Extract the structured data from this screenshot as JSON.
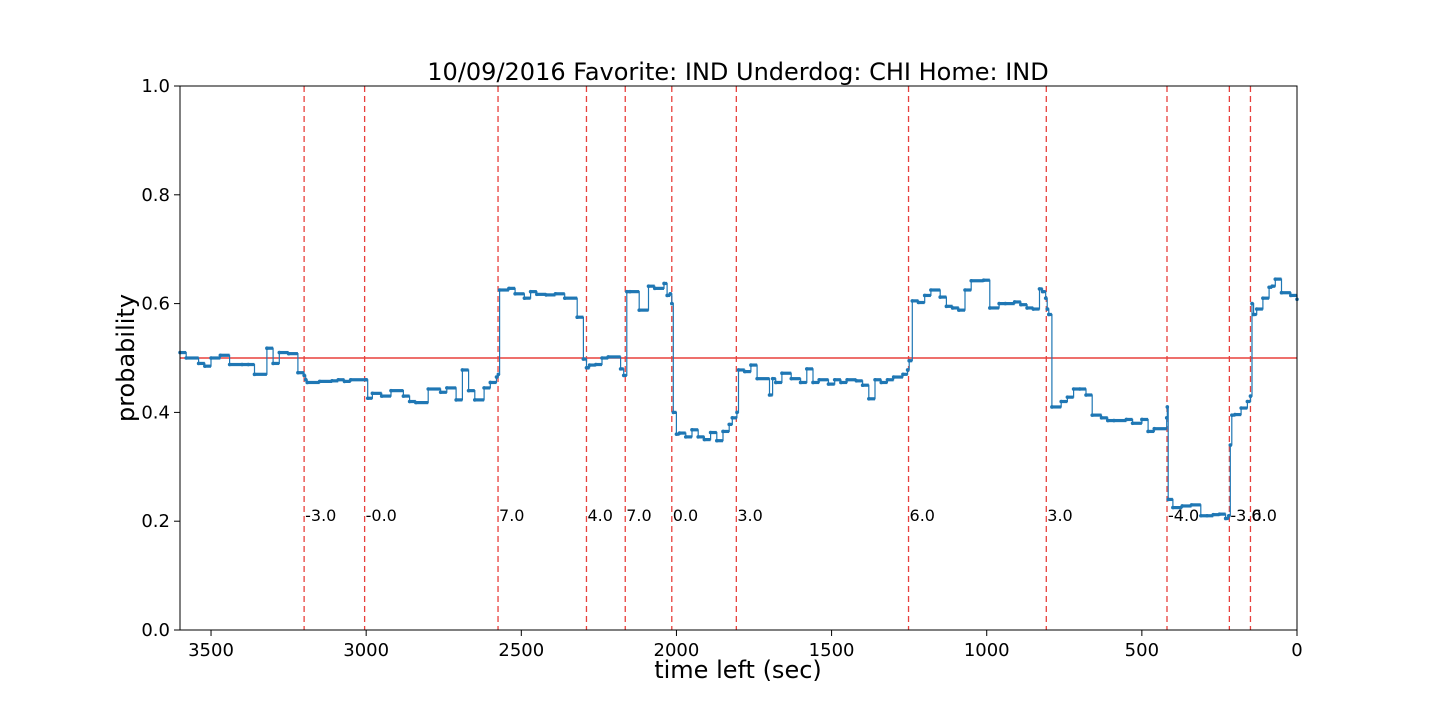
{
  "chart_data": {
    "type": "line",
    "title": "10/09/2016 Favorite: IND Underdog: CHI Home: IND",
    "xlabel": "time left (sec)",
    "ylabel": "probability",
    "xlim": [
      3600,
      0
    ],
    "ylim": [
      0.0,
      1.0
    ],
    "x_ticks": [
      3500,
      3000,
      2500,
      2000,
      1500,
      1000,
      500,
      0
    ],
    "x_tick_labels": [
      "3500",
      "3000",
      "2500",
      "2000",
      "1500",
      "1000",
      "500",
      "0"
    ],
    "y_ticks": [
      0.0,
      0.2,
      0.4,
      0.6,
      0.8,
      1.0
    ],
    "y_tick_labels": [
      "0.0",
      "0.2",
      "0.4",
      "0.6",
      "0.8",
      "1.0"
    ],
    "grid": false,
    "reference_line": {
      "y": 0.5,
      "color": "#e8403c"
    },
    "series": [
      {
        "color": "#1f77b4",
        "x": [
          3600,
          3580,
          3540,
          3520,
          3500,
          3470,
          3440,
          3400,
          3380,
          3360,
          3320,
          3300,
          3280,
          3250,
          3220,
          3200,
          3195,
          3190,
          3150,
          3110,
          3090,
          3070,
          3050,
          3000,
          2995,
          2980,
          2950,
          2920,
          2880,
          2860,
          2840,
          2800,
          2760,
          2740,
          2710,
          2690,
          2670,
          2650,
          2620,
          2600,
          2580,
          2574,
          2570,
          2540,
          2520,
          2490,
          2470,
          2450,
          2420,
          2390,
          2360,
          2320,
          2300,
          2290,
          2285,
          2280,
          2260,
          2240,
          2220,
          2180,
          2170,
          2160,
          2150,
          2120,
          2090,
          2070,
          2040,
          2030,
          2020,
          2015,
          2010,
          2000,
          1990,
          1970,
          1950,
          1930,
          1910,
          1890,
          1870,
          1850,
          1830,
          1820,
          1805,
          1800,
          1780,
          1760,
          1740,
          1700,
          1690,
          1680,
          1660,
          1630,
          1600,
          1580,
          1560,
          1540,
          1510,
          1490,
          1470,
          1450,
          1420,
          1400,
          1380,
          1360,
          1340,
          1320,
          1300,
          1270,
          1255,
          1250,
          1240,
          1220,
          1200,
          1180,
          1150,
          1130,
          1110,
          1090,
          1070,
          1050,
          1010,
          990,
          960,
          940,
          910,
          890,
          870,
          850,
          830,
          820,
          810,
          805,
          800,
          790,
          760,
          740,
          720,
          700,
          680,
          660,
          630,
          610,
          590,
          550,
          530,
          500,
          480,
          460,
          420,
          418,
          415,
          400,
          370,
          340,
          310,
          290,
          270,
          250,
          230,
          220,
          215,
          210,
          200,
          180,
          160,
          150,
          145,
          140,
          130,
          110,
          90,
          80,
          70,
          50,
          20,
          0
        ],
        "y": [
          0.51,
          0.5,
          0.49,
          0.485,
          0.5,
          0.505,
          0.488,
          0.488,
          0.488,
          0.47,
          0.518,
          0.49,
          0.51,
          0.508,
          0.473,
          0.468,
          0.46,
          0.455,
          0.457,
          0.458,
          0.46,
          0.457,
          0.46,
          0.46,
          0.426,
          0.435,
          0.43,
          0.44,
          0.43,
          0.42,
          0.418,
          0.443,
          0.437,
          0.445,
          0.423,
          0.478,
          0.44,
          0.423,
          0.445,
          0.455,
          0.465,
          0.47,
          0.625,
          0.628,
          0.618,
          0.61,
          0.622,
          0.617,
          0.616,
          0.618,
          0.61,
          0.575,
          0.498,
          0.482,
          0.482,
          0.487,
          0.488,
          0.5,
          0.502,
          0.48,
          0.468,
          0.622,
          0.622,
          0.588,
          0.632,
          0.628,
          0.637,
          0.615,
          0.618,
          0.6,
          0.4,
          0.36,
          0.362,
          0.355,
          0.368,
          0.355,
          0.35,
          0.363,
          0.348,
          0.365,
          0.378,
          0.39,
          0.4,
          0.478,
          0.475,
          0.487,
          0.462,
          0.432,
          0.462,
          0.455,
          0.472,
          0.462,
          0.455,
          0.48,
          0.455,
          0.46,
          0.452,
          0.46,
          0.455,
          0.46,
          0.458,
          0.45,
          0.425,
          0.46,
          0.455,
          0.46,
          0.465,
          0.47,
          0.478,
          0.495,
          0.605,
          0.602,
          0.615,
          0.625,
          0.612,
          0.595,
          0.592,
          0.588,
          0.625,
          0.642,
          0.643,
          0.592,
          0.6,
          0.6,
          0.603,
          0.598,
          0.592,
          0.59,
          0.627,
          0.622,
          0.61,
          0.59,
          0.58,
          0.41,
          0.42,
          0.428,
          0.443,
          0.443,
          0.432,
          0.395,
          0.39,
          0.385,
          0.385,
          0.387,
          0.38,
          0.387,
          0.365,
          0.37,
          0.39,
          0.41,
          0.24,
          0.225,
          0.228,
          0.23,
          0.21,
          0.21,
          0.212,
          0.213,
          0.205,
          0.21,
          0.34,
          0.395,
          0.396,
          0.408,
          0.42,
          0.43,
          0.6,
          0.58,
          0.59,
          0.61,
          0.63,
          0.632,
          0.645,
          0.62,
          0.615,
          0.608
        ]
      }
    ],
    "score_events": [
      {
        "time": 3200,
        "label": "-3.0"
      },
      {
        "time": 3005,
        "label": "-0.0"
      },
      {
        "time": 2575,
        "label": "7.0"
      },
      {
        "time": 2290,
        "label": "4.0"
      },
      {
        "time": 2165,
        "label": "7.0"
      },
      {
        "time": 2015,
        "label": "0.0"
      },
      {
        "time": 1807,
        "label": "3.0"
      },
      {
        "time": 1252,
        "label": "6.0"
      },
      {
        "time": 808,
        "label": "3.0"
      },
      {
        "time": 419,
        "label": "-4.0"
      },
      {
        "time": 218,
        "label": "-3.0"
      },
      {
        "time": 150,
        "label": "6.0"
      }
    ],
    "score_line_color": "#e8403c"
  }
}
